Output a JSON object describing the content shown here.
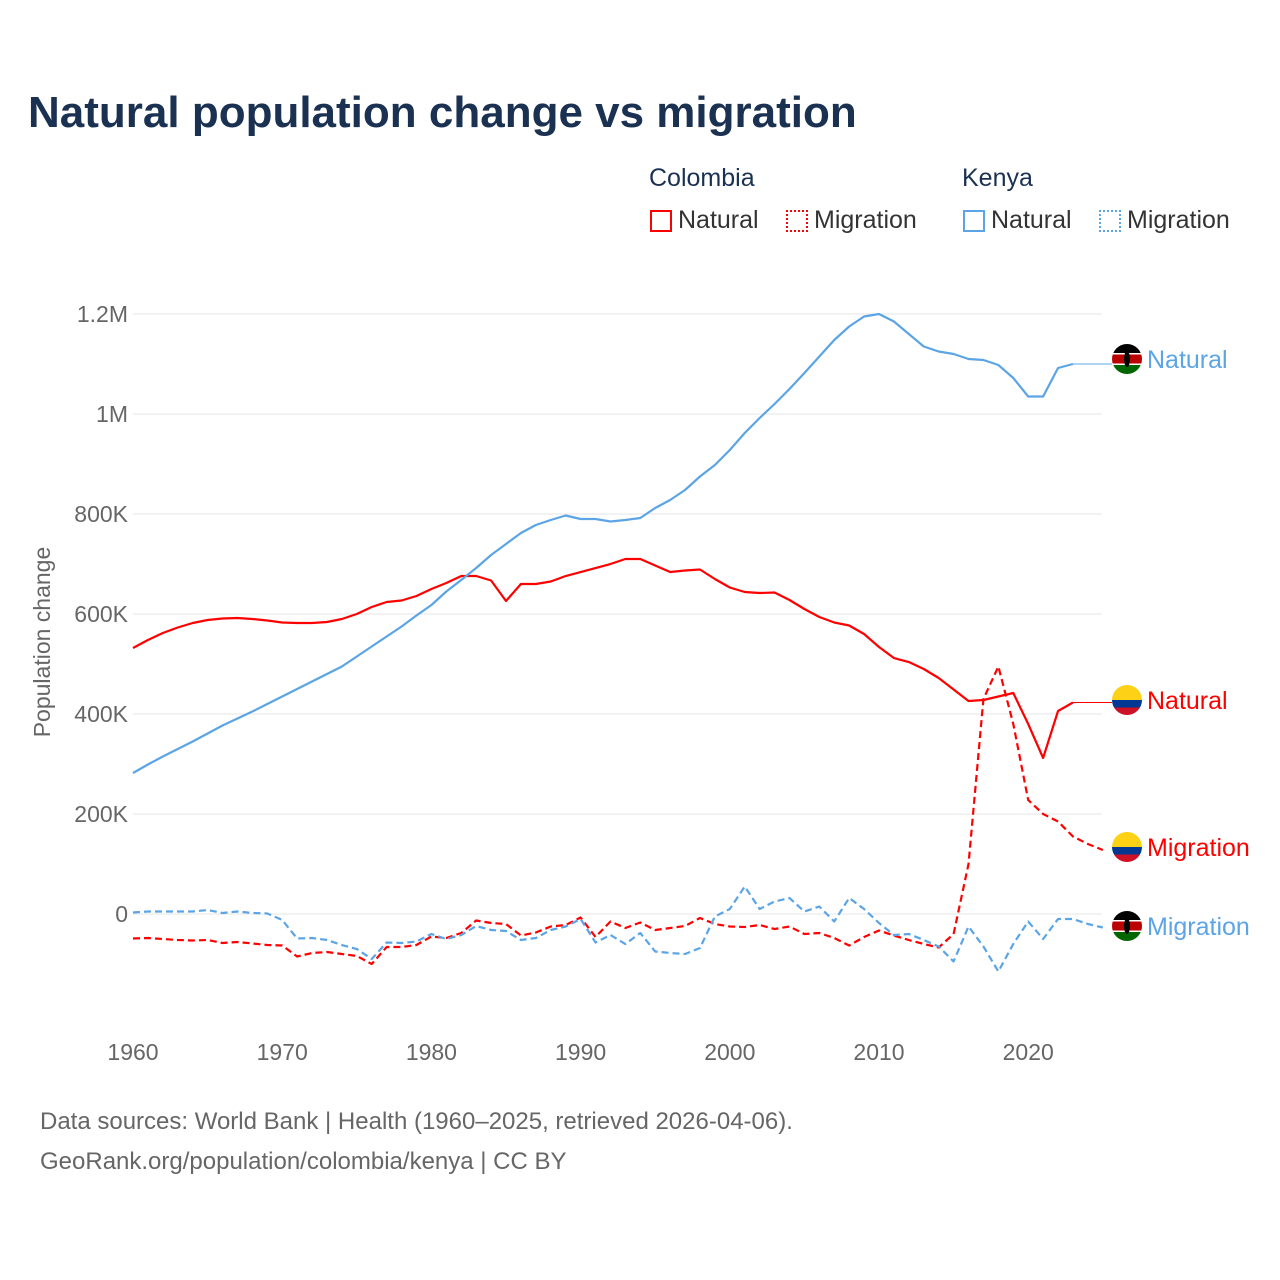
{
  "chart_data": {
    "type": "line",
    "title": "Natural population change vs migration",
    "ylabel": "Population change",
    "xlim": [
      1960,
      2025
    ],
    "ylim": [
      -200000,
      1200000
    ],
    "x_ticks": [
      "1960",
      "1970",
      "1980",
      "1990",
      "2000",
      "2010",
      "2020"
    ],
    "y_ticks": [
      {
        "v": 1200000,
        "l": "1.2M"
      },
      {
        "v": 1000000,
        "l": "1M"
      },
      {
        "v": 800000,
        "l": "800K"
      },
      {
        "v": 600000,
        "l": "600K"
      },
      {
        "v": 400000,
        "l": "400K"
      },
      {
        "v": 200000,
        "l": "200K"
      },
      {
        "v": 0,
        "l": "0"
      }
    ],
    "legend": {
      "groups": [
        {
          "name": "Colombia",
          "items": [
            "Natural",
            "Migration"
          ]
        },
        {
          "name": "Kenya",
          "items": [
            "Natural",
            "Migration"
          ]
        }
      ],
      "placement": "top-right"
    },
    "series": [
      {
        "name": "Colombia Natural",
        "country": "Colombia",
        "kind": "Natural",
        "color": "#ff0000",
        "dash": false,
        "start": 1960,
        "label": "Natural",
        "flag": "colombia",
        "values": [
          532,
          548,
          562,
          573,
          582,
          588,
          591,
          592,
          590,
          587,
          583,
          582,
          582,
          584,
          590,
          600,
          614,
          624,
          627,
          636,
          650,
          662,
          676,
          676,
          667,
          626,
          660,
          660,
          665,
          676,
          684,
          692,
          700,
          710,
          710,
          697,
          684,
          687,
          689,
          670,
          653,
          644,
          642,
          643,
          628,
          610,
          594,
          583,
          577,
          560,
          534,
          512,
          504,
          490,
          472,
          449,
          426,
          428,
          435,
          442,
          380,
          312,
          406,
          423
        ]
      },
      {
        "name": "Colombia Migration",
        "country": "Colombia",
        "kind": "Migration",
        "color": "#ff0000",
        "dash": true,
        "start": 1960,
        "label": "Migration",
        "flag": "colombia",
        "values": [
          -49,
          -48,
          -50,
          -52,
          -53,
          -52,
          -58,
          -56,
          -59,
          -62,
          -63,
          -85,
          -78,
          -76,
          -80,
          -84,
          -100,
          -66,
          -66,
          -62,
          -45,
          -48,
          -38,
          -13,
          -18,
          -20,
          -43,
          -37,
          -25,
          -22,
          -7,
          -46,
          -15,
          -28,
          -17,
          -32,
          -28,
          -24,
          -8,
          -20,
          -25,
          -26,
          -22,
          -30,
          -25,
          -40,
          -38,
          -48,
          -63,
          -46,
          -33,
          -43,
          -52,
          -60,
          -67,
          -40,
          100,
          430,
          495,
          380,
          228,
          200,
          185,
          155,
          140,
          128
        ]
      },
      {
        "name": "Kenya Natural",
        "country": "Kenya",
        "kind": "Natural",
        "color": "#5ba4e6",
        "dash": false,
        "start": 1960,
        "label": "Natural",
        "flag": "kenya",
        "values": [
          282,
          299,
          315,
          330,
          345,
          361,
          377,
          391,
          405,
          420,
          435,
          450,
          465,
          480,
          495,
          515,
          535,
          555,
          575,
          597,
          618,
          645,
          668,
          692,
          718,
          740,
          762,
          778,
          788,
          797,
          790,
          790,
          785,
          788,
          792,
          812,
          828,
          848,
          875,
          898,
          928,
          962,
          992,
          1020,
          1050,
          1082,
          1115,
          1148,
          1175,
          1195,
          1200,
          1185,
          1160,
          1135,
          1125,
          1120,
          1110,
          1108,
          1098,
          1072,
          1035,
          1035,
          1092,
          1100
        ]
      },
      {
        "name": "Kenya Migration",
        "country": "Kenya",
        "kind": "Migration",
        "color": "#5ba4e6",
        "dash": true,
        "start": 1960,
        "label": "Migration",
        "flag": "kenya",
        "values": [
          3,
          5,
          5,
          5,
          5,
          8,
          2,
          5,
          2,
          1,
          -12,
          -49,
          -48,
          -52,
          -62,
          -70,
          -90,
          -57,
          -58,
          -55,
          -40,
          -50,
          -42,
          -24,
          -32,
          -34,
          -52,
          -48,
          -32,
          -25,
          -10,
          -57,
          -42,
          -60,
          -38,
          -75,
          -78,
          -80,
          -68,
          -5,
          10,
          55,
          10,
          25,
          32,
          5,
          15,
          -15,
          32,
          10,
          -18,
          -42,
          -40,
          -52,
          -65,
          -95,
          -25,
          -65,
          -115,
          -60,
          -15,
          -50,
          -10,
          -10,
          -20,
          -27
        ]
      }
    ],
    "value_unit": "thousands"
  },
  "footer": {
    "line1": "Data sources: World Bank | Health (1960–2025, retrieved 2026-04-06).",
    "line2": "GeoRank.org/population/colombia/kenya | CC BY"
  }
}
